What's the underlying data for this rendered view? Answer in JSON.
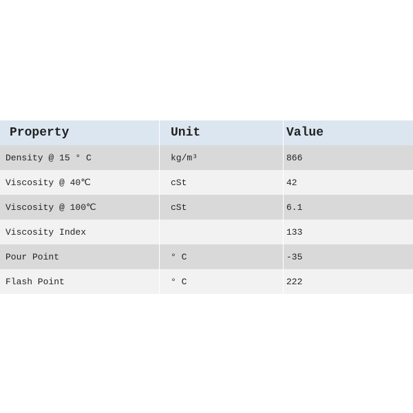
{
  "table": {
    "header": [
      "Property",
      "Unit",
      "Value"
    ],
    "rows": [
      [
        "Density @ 15 ° C",
        "kg/m³",
        866
      ],
      [
        "Viscosity @ 40℃",
        "cSt",
        42
      ],
      [
        "Viscosity @ 100℃",
        "cSt",
        6.1
      ],
      [
        "Viscosity Index",
        null,
        133
      ],
      [
        "Pour Point",
        "° C",
        -35
      ],
      [
        "Flash Point",
        "° C",
        222
      ]
    ]
  }
}
